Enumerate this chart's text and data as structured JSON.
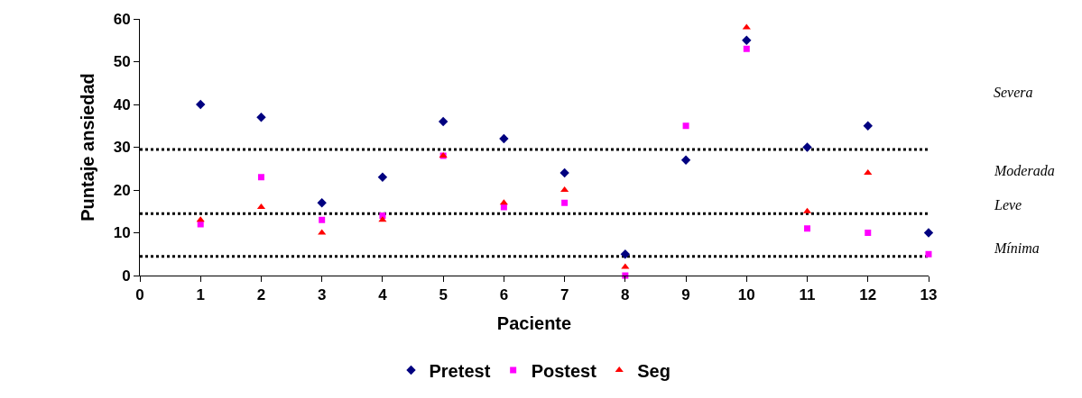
{
  "chart_data": {
    "type": "scatter",
    "xlabel": "Paciente",
    "ylabel": "Puntaje ansiedad",
    "x": [
      1,
      2,
      3,
      4,
      5,
      6,
      7,
      8,
      9,
      10,
      11,
      12,
      13
    ],
    "series": [
      {
        "name": "Pretest",
        "color": "#000080",
        "marker": "diamond",
        "values": [
          40,
          37,
          17,
          23,
          36,
          32,
          24,
          5,
          27,
          55,
          30,
          35,
          10
        ]
      },
      {
        "name": "Postest",
        "color": "#ff00ff",
        "marker": "square",
        "values": [
          12,
          23,
          13,
          14,
          28,
          16,
          17,
          0,
          35,
          53,
          11,
          10,
          5
        ]
      },
      {
        "name": "Seg",
        "color": "#ff0000",
        "marker": "triangle",
        "values": [
          13,
          16,
          10,
          13,
          28,
          17,
          20,
          2,
          null,
          58,
          15,
          24,
          null
        ]
      }
    ],
    "xlim": [
      0,
      13
    ],
    "xticks": [
      0,
      1,
      2,
      3,
      4,
      5,
      6,
      7,
      8,
      9,
      10,
      11,
      12,
      13
    ],
    "ylim": [
      0,
      60
    ],
    "yticks": [
      0,
      10,
      20,
      30,
      40,
      50,
      60
    ],
    "grid": false,
    "legend": "bottom",
    "ref_lines": [
      {
        "axis": "y",
        "value": 29.5,
        "color": "#000000",
        "line_style": "dotted"
      },
      {
        "axis": "y",
        "value": 14.5,
        "color": "#000000",
        "line_style": "dotted"
      },
      {
        "axis": "y",
        "value": 4.5,
        "color": "#000000",
        "line_style": "dotted"
      }
    ],
    "annotations": [
      "Severa",
      "Moderada",
      "Leve",
      "Mínima"
    ]
  }
}
